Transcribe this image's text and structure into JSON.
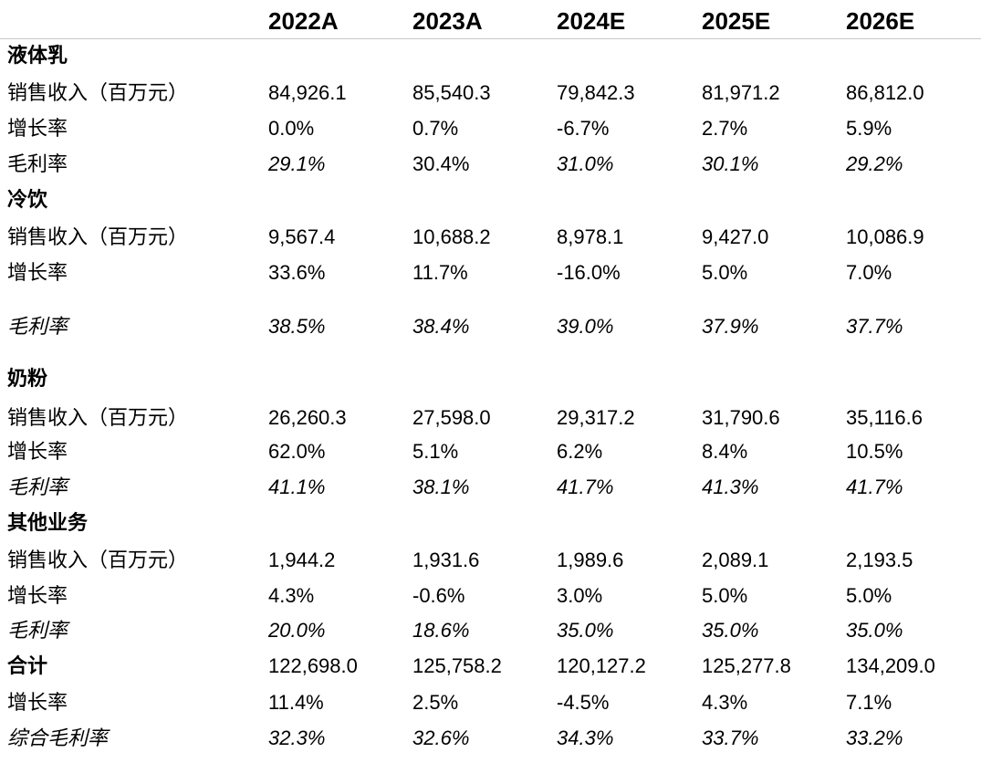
{
  "header": {
    "years": [
      "2022A",
      "2023A",
      "2024E",
      "2025E",
      "2026E"
    ]
  },
  "rows": [
    {
      "label": "液体乳",
      "section": true,
      "values": []
    },
    {
      "label": "销售收入（百万元）",
      "values": [
        "84,926.1",
        "85,540.3",
        "79,842.3",
        "81,971.2",
        "86,812.0"
      ]
    },
    {
      "label": "增长率",
      "values": [
        "0.0%",
        "0.7%",
        "-6.7%",
        "2.7%",
        "5.9%"
      ]
    },
    {
      "label": "毛利率",
      "values": [
        "29.1%",
        "30.4%",
        "31.0%",
        "30.1%",
        "29.2%"
      ]
    },
    {
      "label": "冷饮",
      "section": true,
      "values": []
    },
    {
      "label": "销售收入（百万元）",
      "values": [
        "9,567.4",
        "10,688.2",
        "8,978.1",
        "9,427.0",
        "10,086.9"
      ]
    },
    {
      "label": "增长率",
      "values": [
        "33.6%",
        "11.7%",
        "-16.0%",
        "5.0%",
        "7.0%"
      ]
    },
    {
      "label": "毛利率",
      "values": [
        "38.5%",
        "38.4%",
        "39.0%",
        "37.9%",
        "37.7%"
      ]
    },
    {
      "label": "奶粉",
      "section": true,
      "values": []
    },
    {
      "label": "销售收入（百万元）",
      "values": [
        "26,260.3",
        "27,598.0",
        "29,317.2",
        "31,790.6",
        "35,116.6"
      ]
    },
    {
      "label": "增长率",
      "values": [
        "62.0%",
        "5.1%",
        "6.2%",
        "8.4%",
        "10.5%"
      ]
    },
    {
      "label": "毛利率",
      "values": [
        "41.1%",
        "38.1%",
        "41.7%",
        "41.3%",
        "41.7%"
      ]
    },
    {
      "label": "其他业务",
      "section": true,
      "values": []
    },
    {
      "label": "销售收入（百万元）",
      "values": [
        "1,944.2",
        "1,931.6",
        "1,989.6",
        "2,089.1",
        "2,193.5"
      ]
    },
    {
      "label": "增长率",
      "values": [
        "4.3%",
        "-0.6%",
        "3.0%",
        "5.0%",
        "5.0%"
      ]
    },
    {
      "label": "毛利率",
      "values": [
        "20.0%",
        "18.6%",
        "35.0%",
        "35.0%",
        "35.0%"
      ]
    },
    {
      "label": "合计",
      "section": true,
      "values": [
        "122,698.0",
        "125,758.2",
        "120,127.2",
        "125,277.8",
        "134,209.0"
      ]
    },
    {
      "label": "增长率",
      "values": [
        "11.4%",
        "2.5%",
        "-4.5%",
        "4.3%",
        "7.1%"
      ]
    },
    {
      "label": "综合毛利率",
      "values": [
        "32.3%",
        "32.6%",
        "34.3%",
        "33.7%",
        "33.2%"
      ]
    }
  ]
}
